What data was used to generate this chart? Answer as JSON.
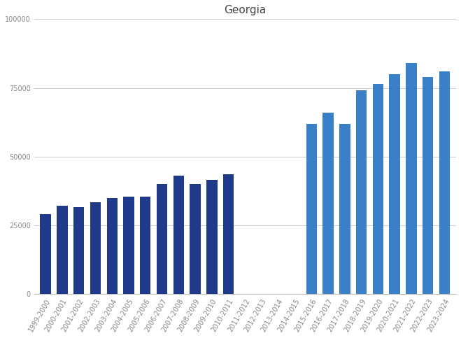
{
  "title": "Georgia",
  "categories": [
    "1999-2000",
    "2000-2001",
    "2001-2002",
    "2002-2003",
    "2003-2004",
    "2004-2005",
    "2005-2006",
    "2006-2007",
    "2007-2008",
    "2008-2009",
    "2009-2010",
    "2010-2011",
    "2011-2012",
    "2012-2013",
    "2013-2014",
    "2014-2015",
    "2015-2016",
    "2016-2017",
    "2017-2018",
    "2018-2019",
    "2019-2020",
    "2020-2021",
    "2021-2022",
    "2022-2023",
    "2023-2024"
  ],
  "values": [
    29000,
    32000,
    31500,
    33500,
    35000,
    35500,
    35500,
    40000,
    43000,
    40000,
    41500,
    43500,
    0,
    0,
    0,
    0,
    62000,
    66000,
    62000,
    74000,
    76500,
    80000,
    84000,
    79000,
    81000
  ],
  "bar_colors": [
    "#1f3a8a",
    "#1f3a8a",
    "#1f3a8a",
    "#1f3a8a",
    "#1f3a8a",
    "#1f3a8a",
    "#1f3a8a",
    "#1f3a8a",
    "#1f3a8a",
    "#1f3a8a",
    "#1f3a8a",
    "#1f3a8a",
    "#ffffff",
    "#ffffff",
    "#ffffff",
    "#ffffff",
    "#3a80c8",
    "#3a80c8",
    "#3a80c8",
    "#3a80c8",
    "#3a80c8",
    "#3a80c8",
    "#3a80c8",
    "#3a80c8",
    "#3a80c8"
  ],
  "ylim": [
    0,
    100000
  ],
  "yticks": [
    0,
    25000,
    50000,
    75000,
    100000
  ],
  "ytick_labels": [
    "0",
    "25000",
    "50000",
    "75000",
    "100000"
  ],
  "background_color": "#ffffff",
  "grid_color": "#cccccc",
  "title_fontsize": 11,
  "tick_fontsize": 7,
  "bar_width": 0.65
}
